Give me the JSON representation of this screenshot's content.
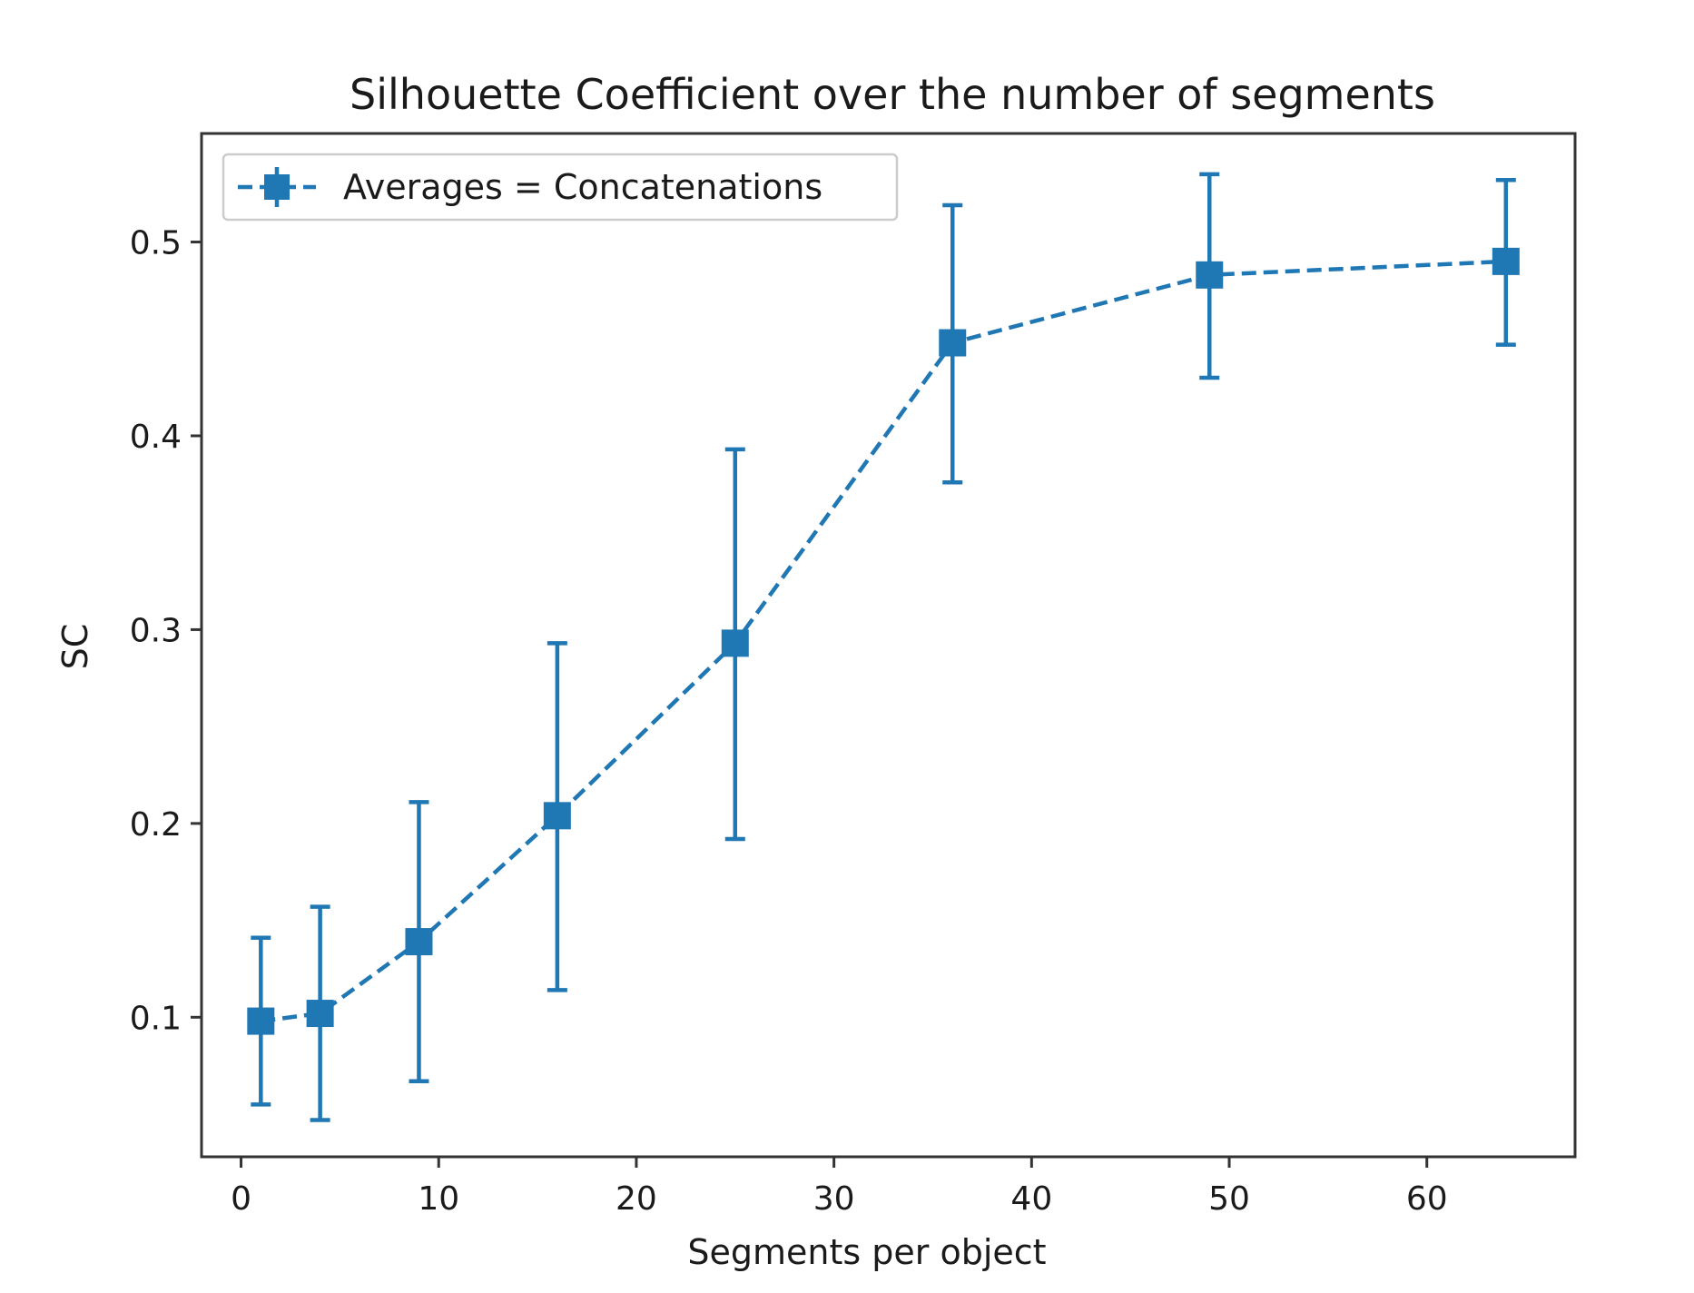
{
  "chart_data": {
    "type": "line",
    "title": "Silhouette Coefficient over the number of segments",
    "xlabel": "Segments per object",
    "ylabel": "SC",
    "xlim": [
      -2,
      67.5
    ],
    "ylim": [
      0.028,
      0.556
    ],
    "xticks": [
      0,
      10,
      20,
      30,
      40,
      50,
      60
    ],
    "xtick_labels": [
      "0",
      "10",
      "20",
      "30",
      "40",
      "50",
      "60"
    ],
    "yticks": [
      0.1,
      0.2,
      0.3,
      0.4,
      0.5
    ],
    "ytick_labels": [
      "0.1",
      "0.2",
      "0.3",
      "0.4",
      "0.5"
    ],
    "grid": false,
    "legend_position": "top-left",
    "series": [
      {
        "name": "Averages = Concatenations",
        "color": "#1f77b4",
        "linestyle": "dashed",
        "marker": "square",
        "x": [
          1,
          4,
          9,
          16,
          25,
          36,
          49,
          64
        ],
        "y": [
          0.098,
          0.102,
          0.139,
          0.204,
          0.293,
          0.448,
          0.483,
          0.49
        ],
        "err_low": [
          0.055,
          0.047,
          0.067,
          0.114,
          0.192,
          0.376,
          0.43,
          0.447
        ],
        "err_high": [
          0.141,
          0.157,
          0.211,
          0.293,
          0.393,
          0.519,
          0.535,
          0.532
        ]
      }
    ]
  }
}
